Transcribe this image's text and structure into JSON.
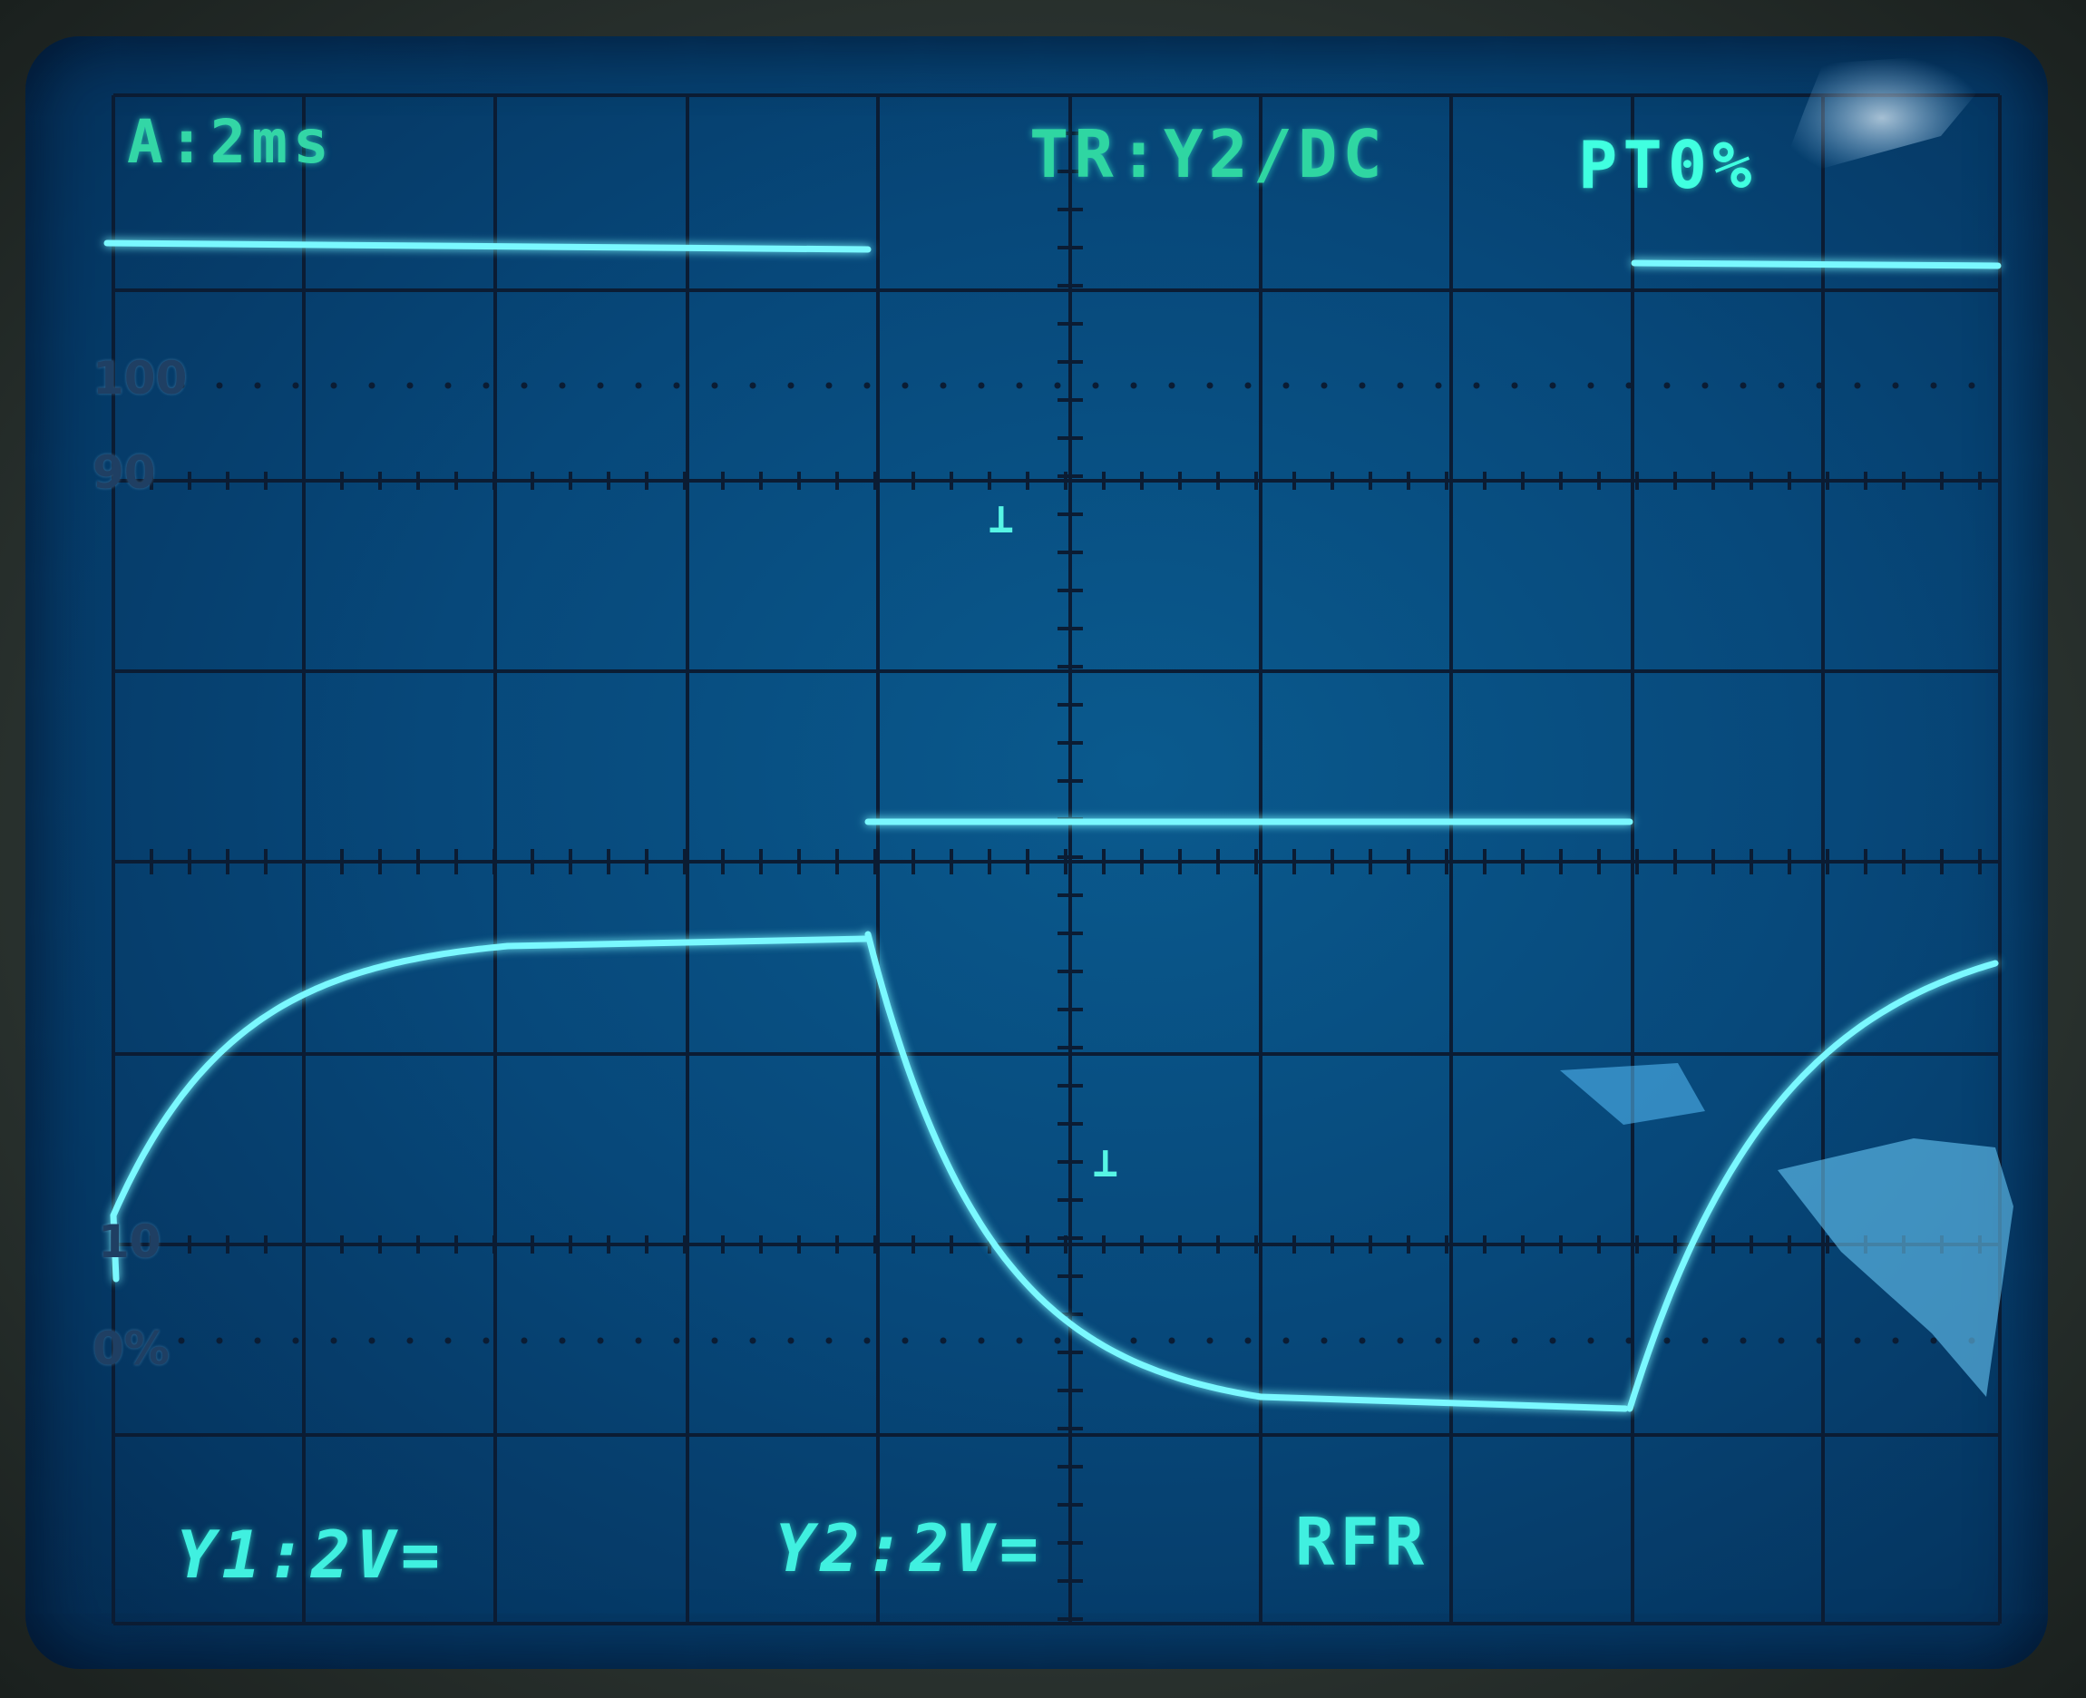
{
  "status": {
    "time_base": "A:2ms",
    "trigger": "TR:Y2/DC",
    "pretrigger": "PT0%",
    "channel_1": "Y1:2V=",
    "channel_2": "Y2:2V=",
    "mode": "RFR"
  },
  "graticule_labels": {
    "top": "100",
    "upper": "90",
    "lower": "10",
    "bottom": "0%"
  },
  "colors": {
    "trace": "#7af8ff",
    "trace_glow": "#20d8f0",
    "grid": "#0a1f3a",
    "screen": "#07487a",
    "readout": "#33d6a6"
  },
  "icons": {
    "channel_marker": "ground-marker-icon"
  }
}
